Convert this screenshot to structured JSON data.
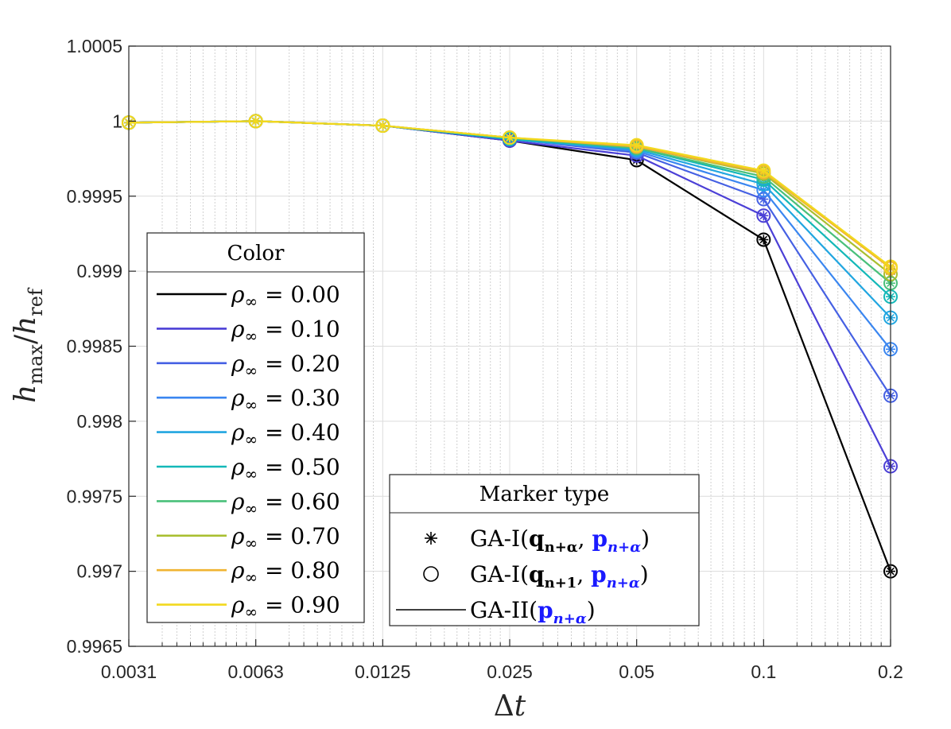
{
  "chart_data": {
    "type": "line",
    "xlabel": "Δt",
    "ylabel": "h_max/h_ref",
    "x_scale": "log2",
    "x": [
      0.003125,
      0.00625,
      0.0125,
      0.025,
      0.05,
      0.1,
      0.2
    ],
    "x_tick_labels": [
      "0.0031",
      "0.0063",
      "0.0125",
      "0.025",
      "0.05",
      "0.1",
      "0.2"
    ],
    "ylim": [
      0.9965,
      1.0005
    ],
    "y_ticks": [
      0.9965,
      0.997,
      0.9975,
      0.998,
      0.9985,
      0.999,
      0.9995,
      1.0,
      1.0005
    ],
    "y_tick_labels": [
      "0.9965",
      "0.997",
      "0.9975",
      "0.998",
      "0.9985",
      "0.999",
      "0.9995",
      "1",
      "1.0005"
    ],
    "grid": true,
    "series": [
      {
        "name": "ρ∞ = 0.00",
        "color": "#000000",
        "values": [
          0.99999,
          1.0,
          0.99997,
          0.99987,
          0.99974,
          0.99921,
          0.997
        ]
      },
      {
        "name": "ρ∞ = 0.10",
        "color": "#4b3fd6",
        "values": [
          0.99999,
          1.0,
          0.99997,
          0.99987,
          0.99977,
          0.99937,
          0.9977
        ]
      },
      {
        "name": "ρ∞ = 0.20",
        "color": "#4560e3",
        "values": [
          0.99999,
          1.0,
          0.99997,
          0.99988,
          0.99979,
          0.99948,
          0.99817
        ]
      },
      {
        "name": "ρ∞ = 0.30",
        "color": "#3a86f0",
        "values": [
          0.99999,
          1.0,
          0.99997,
          0.99988,
          0.9998,
          0.99954,
          0.99848
        ]
      },
      {
        "name": "ρ∞ = 0.40",
        "color": "#21a6e0",
        "values": [
          0.99999,
          1.0,
          0.99997,
          0.99988,
          0.99981,
          0.99958,
          0.99869
        ]
      },
      {
        "name": "ρ∞ = 0.50",
        "color": "#14b8b8",
        "values": [
          0.99999,
          1.0,
          0.99997,
          0.99988,
          0.99982,
          0.99961,
          0.99883
        ]
      },
      {
        "name": "ρ∞ = 0.60",
        "color": "#49c07a",
        "values": [
          0.99999,
          1.0,
          0.99997,
          0.99989,
          0.99982,
          0.99963,
          0.99892
        ]
      },
      {
        "name": "ρ∞ = 0.70",
        "color": "#a9bf30",
        "values": [
          0.99999,
          1.0,
          0.99997,
          0.99989,
          0.99983,
          0.99965,
          0.99898
        ]
      },
      {
        "name": "ρ∞ = 0.80",
        "color": "#f0b432",
        "values": [
          0.99999,
          1.0,
          0.99997,
          0.99989,
          0.99983,
          0.99966,
          0.99902
        ]
      },
      {
        "name": "ρ∞ = 0.90",
        "color": "#f2d91e",
        "values": [
          0.99999,
          1.0,
          0.99997,
          0.99989,
          0.99984,
          0.99967,
          0.99903
        ]
      }
    ],
    "legend_color": {
      "title": "Color",
      "placement": "left-middle",
      "entries": [
        "ρ∞ = 0.00",
        "ρ∞ = 0.10",
        "ρ∞ = 0.20",
        "ρ∞ = 0.30",
        "ρ∞ = 0.40",
        "ρ∞ = 0.50",
        "ρ∞ = 0.60",
        "ρ∞ = 0.70",
        "ρ∞ = 0.80",
        "ρ∞ = 0.90"
      ]
    },
    "legend_marker": {
      "title": "Marker type",
      "placement": "bottom-center",
      "entries": [
        {
          "marker": "asterisk",
          "base": "GA-I(",
          "q": "q",
          "q_sub": "n+α",
          "p": "p",
          "p_sub": "n+α",
          "close": ")"
        },
        {
          "marker": "circle",
          "base": "GA-I(",
          "q": "q",
          "q_sub": "n+1",
          "p": "p",
          "p_sub": "n+α",
          "close": ")"
        },
        {
          "marker": "line",
          "base": "GA-II(",
          "p": "p",
          "p_sub": "n+α",
          "close": ")"
        }
      ],
      "accent_color": "#1a1aff"
    }
  }
}
